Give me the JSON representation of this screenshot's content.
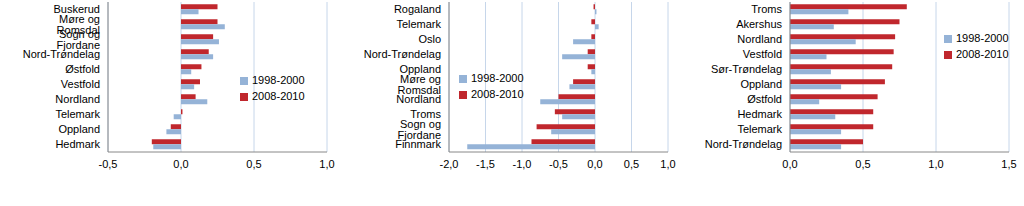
{
  "chart_data": [
    {
      "type": "bar",
      "orientation": "horizontal",
      "grid": true,
      "legend": "center right",
      "categories": [
        "Buskerud",
        "Møre og Romsdal",
        "Sogn og Fjordane",
        "Nord-Trøndelag",
        "Østfold",
        "Vestfold",
        "Nordland",
        "Telemark",
        "Oppland",
        "Hedmark"
      ],
      "series": [
        {
          "name": "2008-2010",
          "color": "#c0272d",
          "values": [
            0.25,
            0.25,
            0.22,
            0.19,
            0.14,
            0.13,
            0.1,
            0.01,
            -0.07,
            -0.2
          ]
        },
        {
          "name": "1998-2000",
          "color": "#95b3d7",
          "values": [
            0.12,
            0.3,
            0.26,
            0.22,
            0.07,
            0.09,
            0.18,
            -0.05,
            -0.1,
            -0.19
          ]
        }
      ],
      "xlim": [
        -0.5,
        1.0
      ],
      "xticks": [
        {
          "value": -0.5,
          "label": "-0,5"
        },
        {
          "value": 0,
          "label": "0,0"
        },
        {
          "value": 0.5,
          "label": "0,5"
        },
        {
          "value": 1.0,
          "label": "1,0"
        }
      ]
    },
    {
      "type": "bar",
      "orientation": "horizontal",
      "grid": true,
      "legend": "center left",
      "categories": [
        "Rogaland",
        "Telemark",
        "Oslo",
        "Nord-Trøndelag",
        "Oppland",
        "Møre og Romsdal",
        "Nordland",
        "Troms",
        "Sogn og Fjordane",
        "Finnmark"
      ],
      "series": [
        {
          "name": "2008-2010",
          "color": "#c0272d",
          "values": [
            -0.02,
            -0.05,
            -0.05,
            -0.1,
            -0.1,
            -0.3,
            -0.5,
            -0.55,
            -0.8,
            -0.87
          ]
        },
        {
          "name": "1998-2000",
          "color": "#95b3d7",
          "values": [
            0.02,
            0.05,
            -0.3,
            -0.45,
            -0.05,
            -0.35,
            -0.75,
            -0.45,
            -0.6,
            -1.75
          ]
        }
      ],
      "xlim": [
        -2.0,
        1.0
      ],
      "xticks": [
        {
          "value": -2.0,
          "label": "-2,0"
        },
        {
          "value": -1.5,
          "label": "-1,5"
        },
        {
          "value": -1.0,
          "label": "-1,0"
        },
        {
          "value": -0.5,
          "label": "-0,5"
        },
        {
          "value": 0,
          "label": "0,0"
        },
        {
          "value": 0.5,
          "label": "0,5"
        },
        {
          "value": 1.0,
          "label": "1,0"
        }
      ]
    },
    {
      "type": "bar",
      "orientation": "horizontal",
      "grid": true,
      "legend": "upper right",
      "categories": [
        "Troms",
        "Akershus",
        "Nordland",
        "Vestfold",
        "Sør-Trøndelag",
        "Oppland",
        "Østfold",
        "Hedmark",
        "Telemark",
        "Nord-Trøndelag"
      ],
      "series": [
        {
          "name": "2008-2010",
          "color": "#c0272d",
          "values": [
            0.8,
            0.75,
            0.72,
            0.71,
            0.7,
            0.65,
            0.6,
            0.57,
            0.57,
            0.5
          ]
        },
        {
          "name": "1998-2000",
          "color": "#95b3d7",
          "values": [
            0.4,
            0.3,
            0.45,
            0.25,
            0.28,
            0.35,
            0.2,
            0.31,
            0.35,
            0.35
          ]
        }
      ],
      "xlim": [
        0,
        1.5
      ],
      "xticks": [
        {
          "value": 0,
          "label": "0,0"
        },
        {
          "value": 0.5,
          "label": "0,5"
        },
        {
          "value": 1.0,
          "label": "1,0"
        },
        {
          "value": 1.5,
          "label": "1,5"
        }
      ]
    }
  ]
}
